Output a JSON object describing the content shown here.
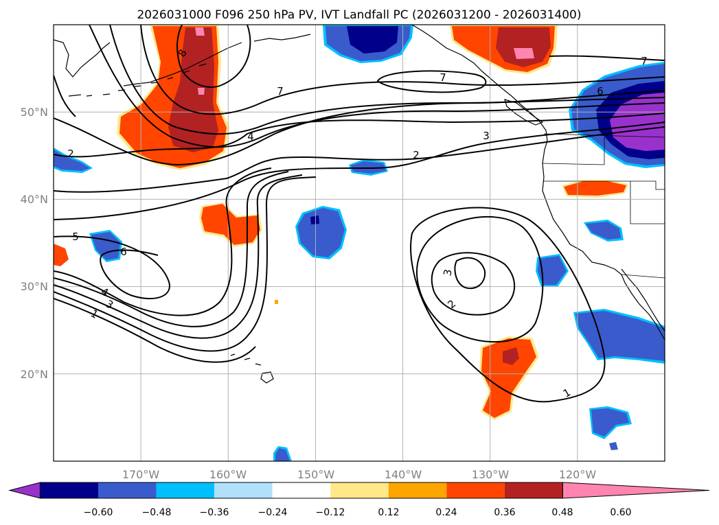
{
  "title": "2026031000 F096 250 hPa PV, IVT Landfall PC (2026031200 - 2026031400)",
  "map": {
    "lon_range": [
      -180,
      -110
    ],
    "lat_range": [
      10,
      60
    ],
    "lon_grid": [
      -170,
      -160,
      -150,
      -140,
      -130,
      -120
    ],
    "lat_grid": [
      20,
      30,
      40,
      50
    ],
    "lon_labels": [
      "170°W",
      "160°W",
      "150°W",
      "140°W",
      "130°W",
      "120°W"
    ],
    "lat_labels": [
      "20°N",
      "30°N",
      "40°N",
      "50°N"
    ],
    "contour_labels": [
      "8",
      "7",
      "4",
      "7",
      "6",
      "7",
      "3",
      "2",
      "2",
      "5",
      "6",
      "4",
      "3",
      "1",
      "3",
      "2",
      "1"
    ]
  },
  "colorbar": {
    "colors": [
      "#9932cc",
      "#00008b",
      "#3a5bcc",
      "#00bfff",
      "#b0e0fa",
      "#ffffff",
      "#ffe88a",
      "#ffa500",
      "#ff4500",
      "#b22222",
      "#ff85b0"
    ],
    "tick_labels": [
      "−0.60",
      "−0.48",
      "−0.36",
      "−0.24",
      "−0.12",
      "0.12",
      "0.24",
      "0.36",
      "0.48",
      "0.60"
    ]
  }
}
